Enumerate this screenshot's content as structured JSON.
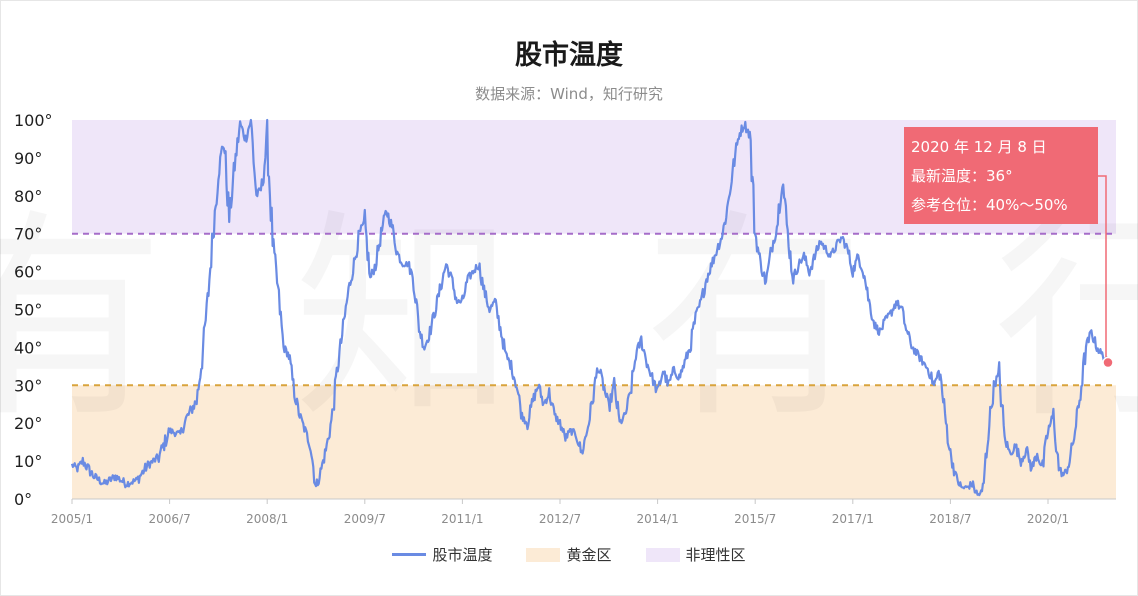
{
  "chart_data": {
    "type": "line",
    "title": "股市温度",
    "subtitle": "数据来源：Wind，知行研究",
    "watermark": "有 知 有 行",
    "xlabel": "",
    "ylabel": "",
    "ylim": [
      0,
      100
    ],
    "yticks": [
      "0°",
      "10°",
      "20°",
      "30°",
      "40°",
      "50°",
      "60°",
      "70°",
      "80°",
      "90°",
      "100°"
    ],
    "xlim": [
      "2005-01",
      "2020-12"
    ],
    "xticks": [
      {
        "date": "2005-01",
        "label": "2005/1"
      },
      {
        "date": "2006-07",
        "label": "2006/7"
      },
      {
        "date": "2008-01",
        "label": "2008/1"
      },
      {
        "date": "2009-07",
        "label": "2009/7"
      },
      {
        "date": "2011-01",
        "label": "2011/1"
      },
      {
        "date": "2012-07",
        "label": "2012/7"
      },
      {
        "date": "2014-01",
        "label": "2014/1"
      },
      {
        "date": "2015-07",
        "label": "2015/7"
      },
      {
        "date": "2017-01",
        "label": "2017/1"
      },
      {
        "date": "2018-07",
        "label": "2018/7"
      },
      {
        "date": "2020-01",
        "label": "2020/1"
      }
    ],
    "grid": false,
    "legend_position": "bottom",
    "bands": [
      {
        "name": "黄金区",
        "from": 0,
        "to": 30,
        "color": "#fcebd6",
        "line_color": "#d9a43c"
      },
      {
        "name": "非理性区",
        "from": 70,
        "to": 100,
        "color": "#efe6f9",
        "line_color": "#a56cc9"
      }
    ],
    "series": [
      {
        "name": "股市温度",
        "color": "#6a8be3",
        "points": [
          [
            "2005-01",
            9
          ],
          [
            "2005-02",
            8
          ],
          [
            "2005-03",
            10
          ],
          [
            "2005-05",
            6
          ],
          [
            "2005-07",
            4
          ],
          [
            "2005-09",
            6
          ],
          [
            "2005-11",
            4
          ],
          [
            "2006-01",
            5
          ],
          [
            "2006-03",
            9
          ],
          [
            "2006-05",
            11
          ],
          [
            "2006-07",
            18
          ],
          [
            "2006-09",
            17
          ],
          [
            "2006-10",
            21
          ],
          [
            "2006-12",
            26
          ],
          [
            "2007-01",
            37
          ],
          [
            "2007-02",
            52
          ],
          [
            "2007-03",
            70
          ],
          [
            "2007-04",
            86
          ],
          [
            "2007-05",
            95
          ],
          [
            "2007-06",
            74
          ],
          [
            "2007-07",
            88
          ],
          [
            "2007-08",
            99
          ],
          [
            "2007-09",
            95
          ],
          [
            "2007-10",
            100
          ],
          [
            "2007-11",
            80
          ],
          [
            "2007-12",
            82
          ],
          [
            "2008-01",
            95
          ],
          [
            "2008-02",
            68
          ],
          [
            "2008-03",
            55
          ],
          [
            "2008-04",
            40
          ],
          [
            "2008-05",
            38
          ],
          [
            "2008-06",
            28
          ],
          [
            "2008-07",
            22
          ],
          [
            "2008-08",
            18
          ],
          [
            "2008-09",
            14
          ],
          [
            "2008-10",
            3
          ],
          [
            "2008-11",
            8
          ],
          [
            "2008-12",
            14
          ],
          [
            "2009-01",
            22
          ],
          [
            "2009-02",
            35
          ],
          [
            "2009-03",
            45
          ],
          [
            "2009-04",
            55
          ],
          [
            "2009-05",
            62
          ],
          [
            "2009-06",
            70
          ],
          [
            "2009-07",
            73
          ],
          [
            "2009-08",
            58
          ],
          [
            "2009-09",
            62
          ],
          [
            "2009-10",
            70
          ],
          [
            "2009-11",
            76
          ],
          [
            "2009-12",
            72
          ],
          [
            "2010-01",
            65
          ],
          [
            "2010-02",
            62
          ],
          [
            "2010-03",
            62
          ],
          [
            "2010-04",
            58
          ],
          [
            "2010-05",
            45
          ],
          [
            "2010-06",
            40
          ],
          [
            "2010-07",
            44
          ],
          [
            "2010-08",
            50
          ],
          [
            "2010-09",
            56
          ],
          [
            "2010-10",
            62
          ],
          [
            "2010-11",
            58
          ],
          [
            "2010-12",
            52
          ],
          [
            "2011-01",
            52
          ],
          [
            "2011-02",
            58
          ],
          [
            "2011-03",
            60
          ],
          [
            "2011-04",
            62
          ],
          [
            "2011-05",
            55
          ],
          [
            "2011-06",
            50
          ],
          [
            "2011-07",
            52
          ],
          [
            "2011-08",
            45
          ],
          [
            "2011-09",
            38
          ],
          [
            "2011-10",
            35
          ],
          [
            "2011-11",
            30
          ],
          [
            "2011-12",
            22
          ],
          [
            "2012-01",
            20
          ],
          [
            "2012-02",
            26
          ],
          [
            "2012-03",
            30
          ],
          [
            "2012-04",
            25
          ],
          [
            "2012-05",
            28
          ],
          [
            "2012-06",
            22
          ],
          [
            "2012-07",
            20
          ],
          [
            "2012-08",
            16
          ],
          [
            "2012-09",
            18
          ],
          [
            "2012-10",
            17
          ],
          [
            "2012-11",
            12
          ],
          [
            "2012-12",
            18
          ],
          [
            "2013-01",
            26
          ],
          [
            "2013-02",
            35
          ],
          [
            "2013-03",
            30
          ],
          [
            "2013-04",
            24
          ],
          [
            "2013-05",
            30
          ],
          [
            "2013-06",
            20
          ],
          [
            "2013-07",
            22
          ],
          [
            "2013-08",
            28
          ],
          [
            "2013-09",
            38
          ],
          [
            "2013-10",
            42
          ],
          [
            "2013-11",
            36
          ],
          [
            "2013-12",
            32
          ],
          [
            "2014-01",
            28
          ],
          [
            "2014-02",
            34
          ],
          [
            "2014-03",
            30
          ],
          [
            "2014-04",
            34
          ],
          [
            "2014-05",
            32
          ],
          [
            "2014-06",
            36
          ],
          [
            "2014-07",
            40
          ],
          [
            "2014-08",
            48
          ],
          [
            "2014-09",
            52
          ],
          [
            "2014-10",
            58
          ],
          [
            "2014-11",
            62
          ],
          [
            "2014-12",
            66
          ],
          [
            "2015-01",
            70
          ],
          [
            "2015-02",
            78
          ],
          [
            "2015-03",
            88
          ],
          [
            "2015-04",
            96
          ],
          [
            "2015-05",
            99
          ],
          [
            "2015-06",
            96
          ],
          [
            "2015-07",
            70
          ],
          [
            "2015-08",
            62
          ],
          [
            "2015-09",
            57
          ],
          [
            "2015-10",
            66
          ],
          [
            "2015-11",
            72
          ],
          [
            "2015-12",
            85
          ],
          [
            "2016-01",
            70
          ],
          [
            "2016-02",
            58
          ],
          [
            "2016-03",
            62
          ],
          [
            "2016-04",
            64
          ],
          [
            "2016-05",
            60
          ],
          [
            "2016-06",
            64
          ],
          [
            "2016-07",
            68
          ],
          [
            "2016-08",
            66
          ],
          [
            "2016-09",
            64
          ],
          [
            "2016-10",
            67
          ],
          [
            "2016-11",
            69
          ],
          [
            "2016-12",
            66
          ],
          [
            "2017-01",
            60
          ],
          [
            "2017-02",
            64
          ],
          [
            "2017-03",
            60
          ],
          [
            "2017-04",
            52
          ],
          [
            "2017-05",
            46
          ],
          [
            "2017-06",
            44
          ],
          [
            "2017-07",
            47
          ],
          [
            "2017-08",
            49
          ],
          [
            "2017-09",
            52
          ],
          [
            "2017-10",
            50
          ],
          [
            "2017-11",
            44
          ],
          [
            "2017-12",
            40
          ],
          [
            "2018-01",
            38
          ],
          [
            "2018-02",
            36
          ],
          [
            "2018-03",
            34
          ],
          [
            "2018-04",
            30
          ],
          [
            "2018-05",
            34
          ],
          [
            "2018-06",
            22
          ],
          [
            "2018-07",
            12
          ],
          [
            "2018-08",
            6
          ],
          [
            "2018-09",
            3
          ],
          [
            "2018-10",
            3
          ],
          [
            "2018-11",
            4
          ],
          [
            "2018-12",
            1
          ],
          [
            "2019-01",
            2
          ],
          [
            "2019-02",
            18
          ],
          [
            "2019-03",
            30
          ],
          [
            "2019-04",
            33
          ],
          [
            "2019-05",
            16
          ],
          [
            "2019-06",
            12
          ],
          [
            "2019-07",
            14
          ],
          [
            "2019-08",
            10
          ],
          [
            "2019-09",
            13
          ],
          [
            "2019-10",
            8
          ],
          [
            "2019-11",
            12
          ],
          [
            "2019-12",
            8
          ],
          [
            "2020-01",
            18
          ],
          [
            "2020-02",
            22
          ],
          [
            "2020-03",
            8
          ],
          [
            "2020-04",
            6
          ],
          [
            "2020-05",
            10
          ],
          [
            "2020-06",
            18
          ],
          [
            "2020-07",
            28
          ],
          [
            "2020-08",
            40
          ],
          [
            "2020-09",
            44
          ],
          [
            "2020-10",
            40
          ],
          [
            "2020-11",
            38
          ],
          [
            "2020-12",
            36
          ]
        ]
      }
    ],
    "annotation": {
      "date": "2020-12-08",
      "value": 36,
      "lines": [
        "2020 年 12 月 8 日",
        "最新温度：36°",
        "参考仓位：40%～50%"
      ],
      "color": "#f06a75"
    }
  }
}
